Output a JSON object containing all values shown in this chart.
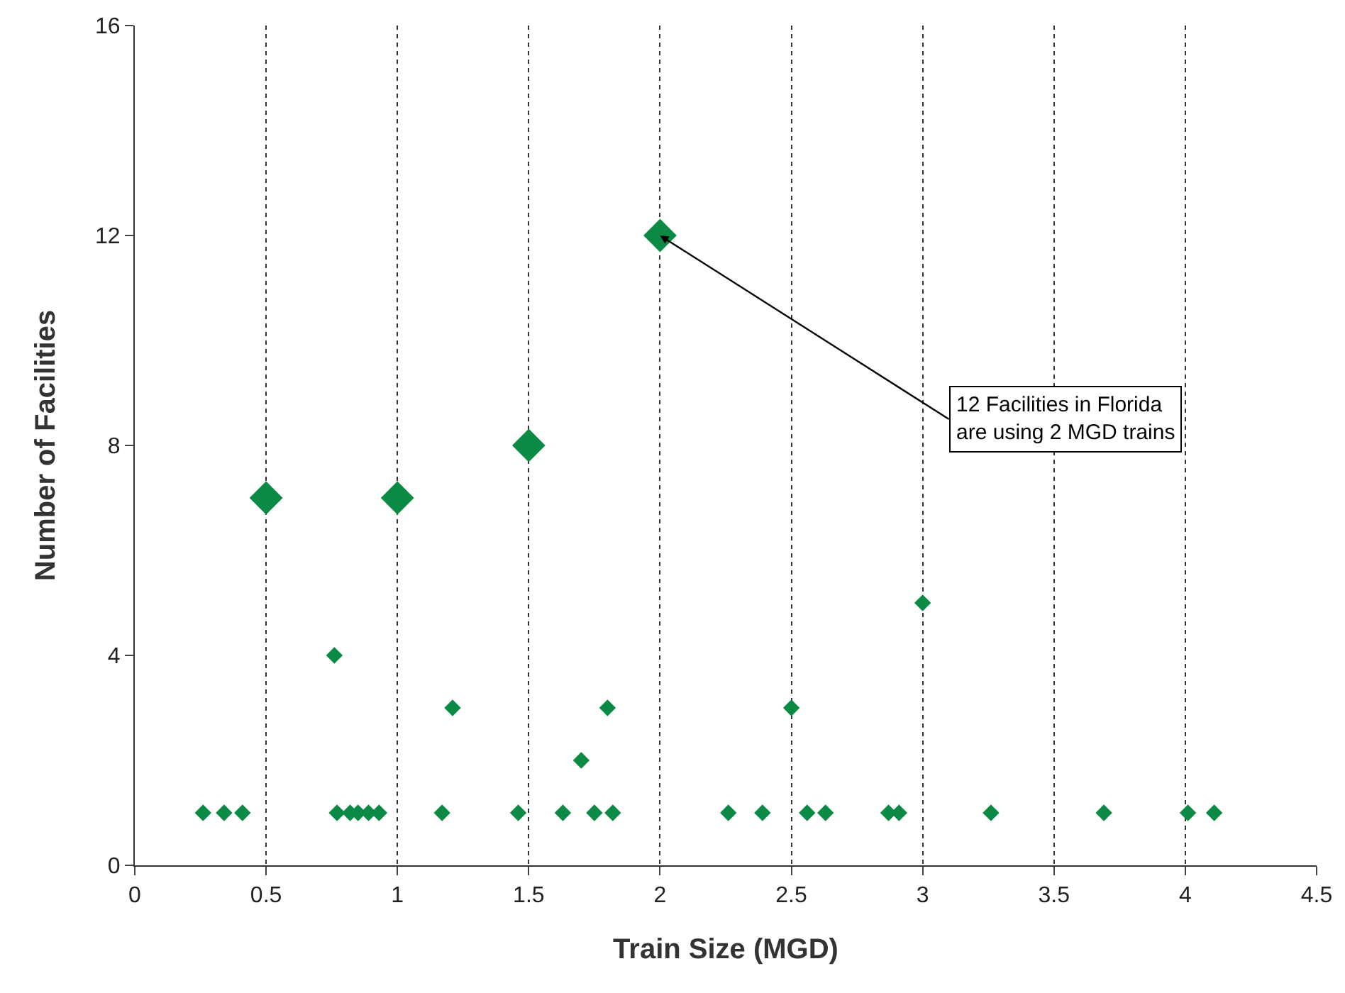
{
  "chart_data": {
    "type": "scatter",
    "xlabel": "Train Size (MGD)",
    "ylabel": "Number of Facilities",
    "series": [
      {
        "color": "#0a8a44",
        "x": [
          0.5,
          1,
          1.5,
          2
        ],
        "values": [
          7,
          7,
          8,
          12
        ]
      },
      {
        "color": "#0a8a44",
        "x": [
          0.26,
          0.34,
          0.41,
          0.76,
          0.77,
          0.82,
          0.85,
          0.89,
          0.93,
          1.17,
          1.21,
          1.46,
          1.63,
          1.7,
          1.75,
          1.8,
          1.82,
          2.26,
          2.39,
          2.5,
          2.56,
          2.63,
          2.87,
          2.91,
          3,
          3.26,
          3.69,
          4.01,
          4.11
        ],
        "values": [
          1,
          1,
          1,
          4,
          1,
          1,
          1,
          1,
          1,
          1,
          3,
          1,
          1,
          2,
          1,
          3,
          1,
          1,
          1,
          3,
          1,
          1,
          1,
          1,
          5,
          1,
          1,
          1,
          1
        ]
      }
    ],
    "xlim": [
      0,
      4.5
    ],
    "xticks": [
      0,
      0.5,
      1,
      1.5,
      2,
      2.5,
      3,
      3.5,
      4,
      4.5
    ],
    "ylim": [
      0,
      16
    ],
    "yticks": [
      0,
      4,
      8,
      12,
      16
    ],
    "grid": "x",
    "marker": "diamond",
    "annotations": [
      {
        "text": "12 Facilities in Florida\nare using 2 MGD trains",
        "x": 2,
        "y": 12
      }
    ]
  }
}
